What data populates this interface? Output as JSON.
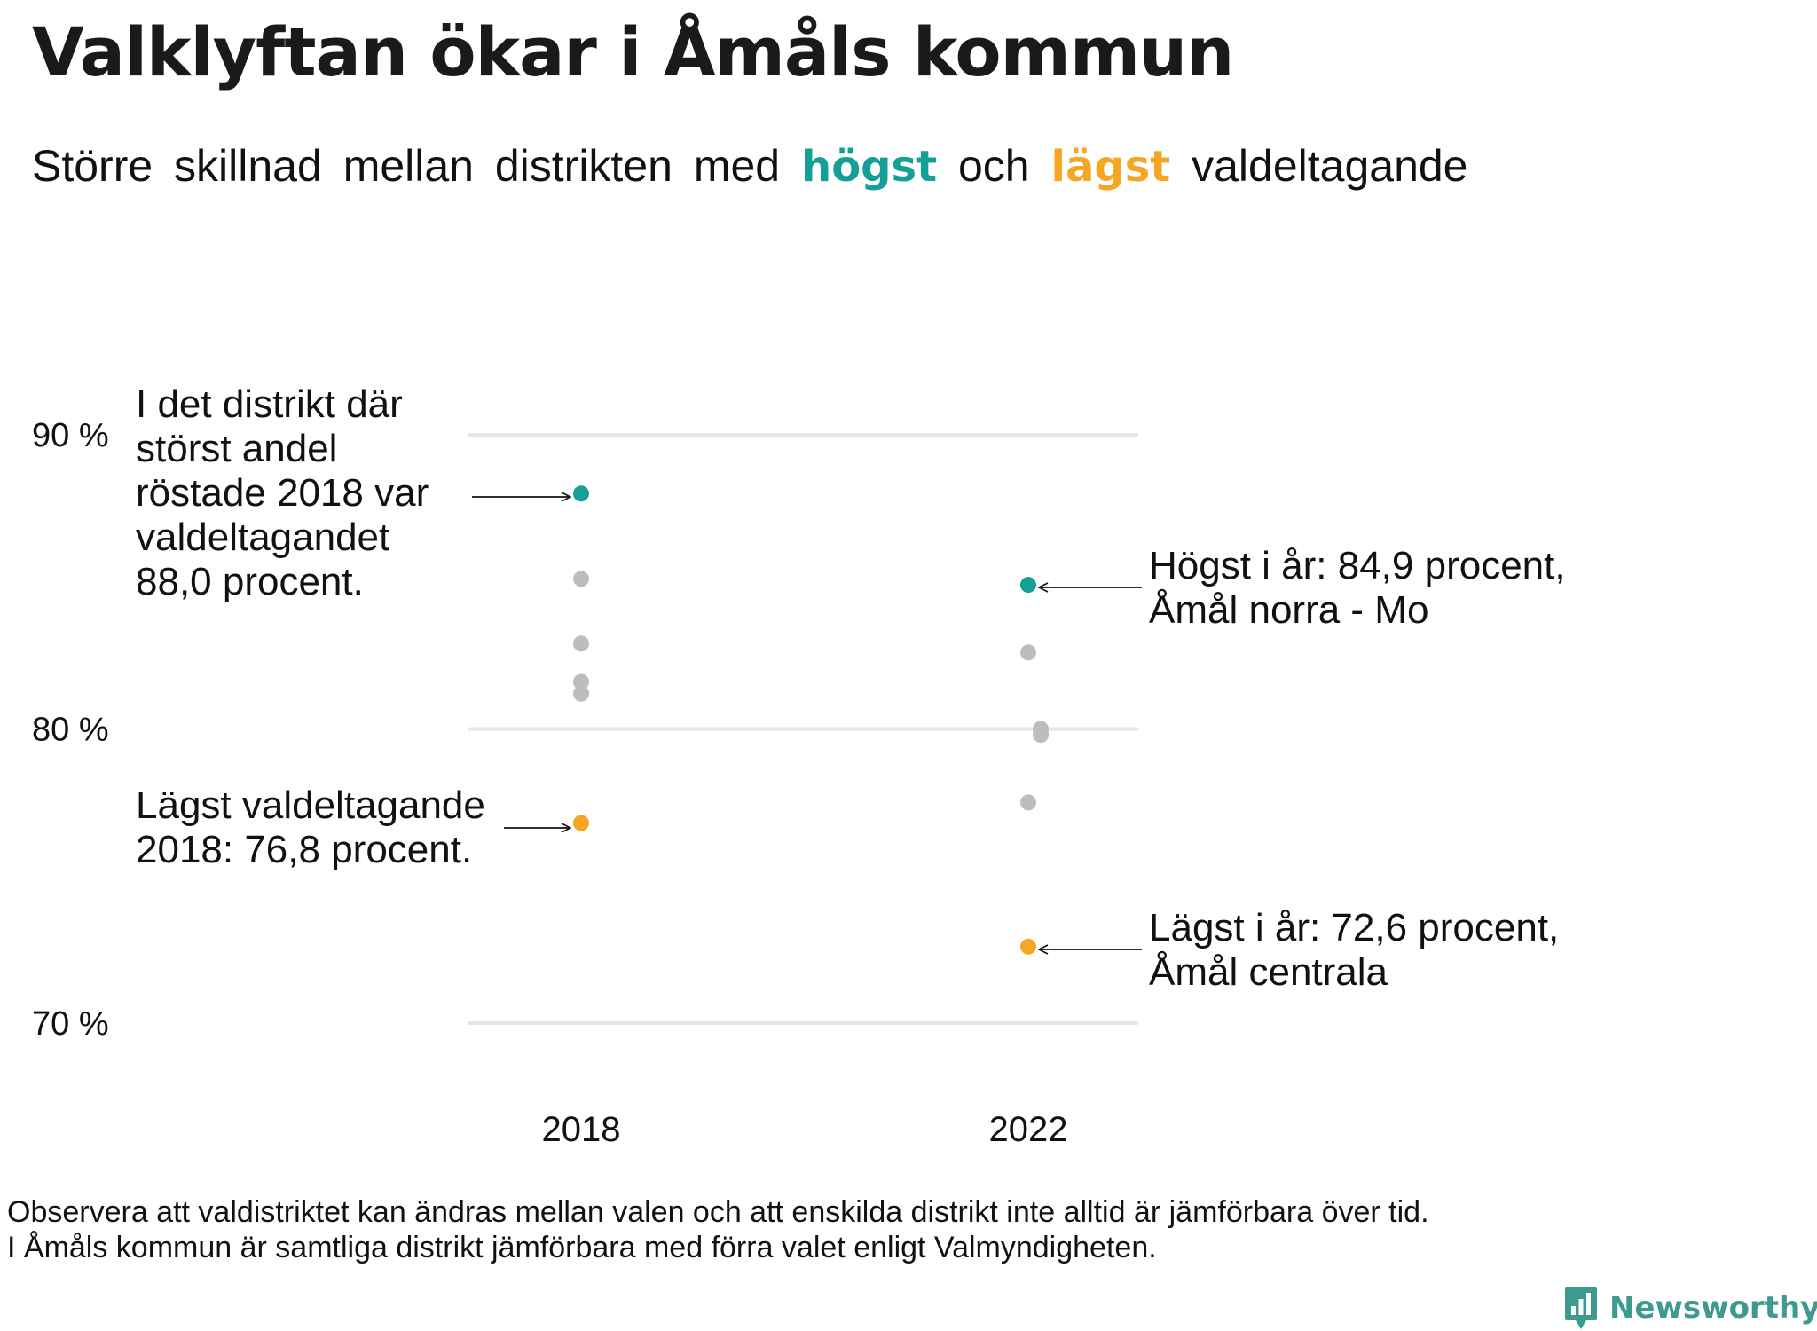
{
  "header": {
    "title": "Valklyftan ökar i Åmåls kommun",
    "subtitle_before": "Större skillnad mellan distrikten med",
    "subtitle_high": "högst",
    "subtitle_mid": "och",
    "subtitle_low": "lägst",
    "subtitle_after": "valdeltagande"
  },
  "colors": {
    "high": "#14a096",
    "low": "#f5a623",
    "other": "#bdbdbd",
    "grid": "#e6e6e6",
    "text": "#111111"
  },
  "chart_data": {
    "type": "scatter",
    "title": "Valklyftan ökar i Åmåls kommun",
    "categories": [
      "2018",
      "2022"
    ],
    "ylim": [
      70,
      90
    ],
    "yticks": [
      70,
      80,
      90
    ],
    "ytick_labels": [
      "70 %",
      "80 %",
      "90 %"
    ],
    "grid": true,
    "points": [
      {
        "x": "2018",
        "y": 88.0,
        "role": "high"
      },
      {
        "x": "2018",
        "y": 85.1,
        "role": "other"
      },
      {
        "x": "2018",
        "y": 82.9,
        "role": "other"
      },
      {
        "x": "2018",
        "y": 81.6,
        "role": "other"
      },
      {
        "x": "2018",
        "y": 81.2,
        "role": "other"
      },
      {
        "x": "2018",
        "y": 76.8,
        "role": "low"
      },
      {
        "x": "2022",
        "y": 84.9,
        "role": "high"
      },
      {
        "x": "2022",
        "y": 82.6,
        "role": "other"
      },
      {
        "x": "2022",
        "y": 80.0,
        "role": "other"
      },
      {
        "x": "2022",
        "y": 79.8,
        "role": "other"
      },
      {
        "x": "2022",
        "y": 77.5,
        "role": "other"
      },
      {
        "x": "2022",
        "y": 72.6,
        "role": "low"
      }
    ],
    "annotations": [
      {
        "target": "2018-high",
        "lines": [
          "I det distrikt där",
          "störst andel",
          "röstade 2018 var",
          "valdeltagandet",
          "88,0 procent."
        ]
      },
      {
        "target": "2018-low",
        "lines": [
          "Lägst valdeltagande",
          "2018: 76,8 procent."
        ]
      },
      {
        "target": "2022-high",
        "lines": [
          "Högst i år: 84,9 procent,",
          "Åmål norra - Mo"
        ]
      },
      {
        "target": "2022-low",
        "lines": [
          "Lägst i år: 72,6 procent,",
          "Åmål centrala"
        ]
      }
    ]
  },
  "footnote": {
    "line1": "Observera att valdistriktet kan ändras mellan valen och att enskilda distrikt inte alltid är jämförbara över tid.",
    "line2": "I Åmåls kommun är samtliga distrikt jämförbara med förra valet enligt Valmyndigheten."
  },
  "brand": {
    "name": "Newsworthy",
    "icon": "newsworthy-logo-icon"
  }
}
